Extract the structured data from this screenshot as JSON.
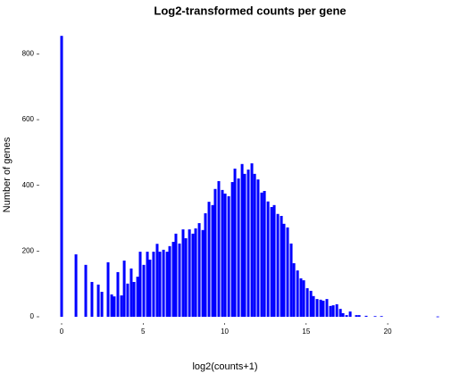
{
  "chart_data": {
    "type": "bar",
    "title": "Log2-transformed counts per gene",
    "xlabel": "log2(counts+1)",
    "ylabel": "Number of genes",
    "color": "#0000ff",
    "x": [
      0,
      0.88,
      1.48,
      1.86,
      2.25,
      2.47,
      2.85,
      3.07,
      3.23,
      3.45,
      3.67,
      3.84,
      4.05,
      4.27,
      4.44,
      4.66,
      4.82,
      5.04,
      5.26,
      5.42,
      5.64,
      5.86,
      6.03,
      6.25,
      6.47,
      6.63,
      6.85,
      7.01,
      7.23,
      7.45,
      7.62,
      7.84,
      8.05,
      8.22,
      8.44,
      8.66,
      8.82,
      9.04,
      9.26,
      9.42,
      9.64,
      9.86,
      10.03,
      10.25,
      10.47,
      10.63,
      10.85,
      11.07,
      11.23,
      11.45,
      11.67,
      11.84,
      12.05,
      12.27,
      12.44,
      12.66,
      12.88,
      13.04,
      13.26,
      13.48,
      13.64,
      13.86,
      14.08,
      14.25,
      14.47,
      14.68,
      14.85,
      15.07,
      15.29,
      15.45,
      15.67,
      15.89,
      16.05,
      16.27,
      16.49,
      16.66,
      16.88,
      17.1,
      17.26,
      17.48,
      17.7,
      18.08,
      18.25,
      18.68,
      19.23,
      19.62,
      23.07
    ],
    "values": [
      855,
      190,
      158,
      106,
      98,
      76,
      166,
      68,
      62,
      136,
      65,
      171,
      101,
      147,
      106,
      122,
      198,
      158,
      198,
      174,
      198,
      222,
      198,
      204,
      198,
      215,
      228,
      253,
      223,
      266,
      239,
      266,
      253,
      269,
      285,
      264,
      315,
      350,
      340,
      389,
      413,
      386,
      375,
      367,
      410,
      451,
      421,
      465,
      435,
      448,
      467,
      435,
      418,
      378,
      383,
      351,
      334,
      340,
      313,
      307,
      283,
      272,
      223,
      163,
      141,
      117,
      111,
      87,
      79,
      63,
      54,
      52,
      49,
      54,
      33,
      35,
      38,
      24,
      11,
      5,
      16,
      5,
      5,
      3,
      2,
      2,
      1
    ],
    "xlim": [
      -0.8,
      23.5
    ],
    "xticks": [
      0,
      5,
      10,
      15,
      20
    ],
    "ylim": [
      0,
      880
    ],
    "yticks": [
      0,
      200,
      400,
      600,
      800
    ]
  }
}
